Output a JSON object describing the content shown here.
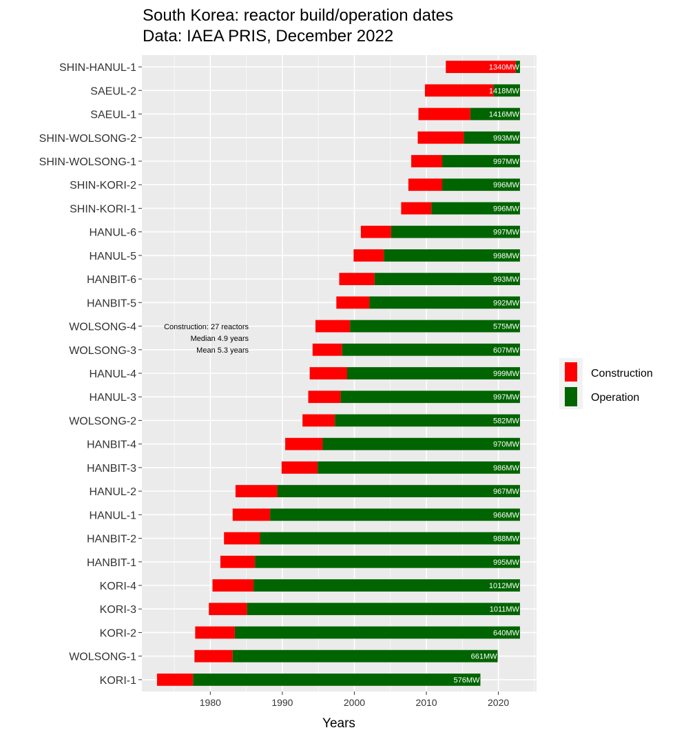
{
  "chart_data": {
    "type": "bar",
    "orientation": "horizontal-range",
    "title": "South Korea: reactor build/operation dates",
    "subtitle": "Data: IAEA PRIS, December 2022",
    "xlabel": "Years",
    "ylabel": "",
    "xlim": [
      1970.5,
      2025.3
    ],
    "xticks": [
      1980,
      1990,
      2000,
      2010,
      2020
    ],
    "grid": true,
    "legend_position": "right",
    "legend": [
      {
        "name": "Construction",
        "color": "#ff0000"
      },
      {
        "name": "Operation",
        "color": "#006400"
      }
    ],
    "annotation": [
      "Construction: 27 reactors",
      "Median 4.9 years",
      "Mean 5.3 years"
    ],
    "reactors": [
      {
        "name": "KORI-1",
        "construction_start": 1972.6,
        "operation_start": 1977.6,
        "end": 2017.5,
        "mw": "576MW"
      },
      {
        "name": "WOLSONG-1",
        "construction_start": 1977.8,
        "operation_start": 1983.1,
        "end": 2019.9,
        "mw": "661MW"
      },
      {
        "name": "KORI-2",
        "construction_start": 1977.9,
        "operation_start": 1983.4,
        "end": 2023.0,
        "mw": "640MW"
      },
      {
        "name": "KORI-3",
        "construction_start": 1979.8,
        "operation_start": 1985.1,
        "end": 2023.0,
        "mw": "1011MW"
      },
      {
        "name": "KORI-4",
        "construction_start": 1980.3,
        "operation_start": 1986.0,
        "end": 2023.0,
        "mw": "1012MW"
      },
      {
        "name": "HANBIT-1",
        "construction_start": 1981.4,
        "operation_start": 1986.2,
        "end": 2023.0,
        "mw": "995MW"
      },
      {
        "name": "HANBIT-2",
        "construction_start": 1981.9,
        "operation_start": 1986.9,
        "end": 2023.0,
        "mw": "988MW"
      },
      {
        "name": "HANUL-1",
        "construction_start": 1983.1,
        "operation_start": 1988.3,
        "end": 2023.0,
        "mw": "966MW"
      },
      {
        "name": "HANUL-2",
        "construction_start": 1983.5,
        "operation_start": 1989.3,
        "end": 2023.0,
        "mw": "967MW"
      },
      {
        "name": "HANBIT-3",
        "construction_start": 1989.9,
        "operation_start": 1994.9,
        "end": 2023.0,
        "mw": "986MW"
      },
      {
        "name": "HANBIT-4",
        "construction_start": 1990.4,
        "operation_start": 1995.6,
        "end": 2023.0,
        "mw": "970MW"
      },
      {
        "name": "WOLSONG-2",
        "construction_start": 1992.8,
        "operation_start": 1997.3,
        "end": 2023.0,
        "mw": "582MW"
      },
      {
        "name": "HANUL-3",
        "construction_start": 1993.6,
        "operation_start": 1998.1,
        "end": 2023.0,
        "mw": "997MW"
      },
      {
        "name": "HANUL-4",
        "construction_start": 1993.8,
        "operation_start": 1999.0,
        "end": 2023.0,
        "mw": "999MW"
      },
      {
        "name": "WOLSONG-3",
        "construction_start": 1994.2,
        "operation_start": 1998.3,
        "end": 2023.0,
        "mw": "607MW"
      },
      {
        "name": "WOLSONG-4",
        "construction_start": 1994.6,
        "operation_start": 1999.4,
        "end": 2023.0,
        "mw": "575MW"
      },
      {
        "name": "HANBIT-5",
        "construction_start": 1997.5,
        "operation_start": 2002.1,
        "end": 2023.0,
        "mw": "992MW"
      },
      {
        "name": "HANBIT-6",
        "construction_start": 1997.9,
        "operation_start": 2002.8,
        "end": 2023.0,
        "mw": "993MW"
      },
      {
        "name": "HANUL-5",
        "construction_start": 1999.9,
        "operation_start": 2004.1,
        "end": 2023.0,
        "mw": "998MW"
      },
      {
        "name": "HANUL-6",
        "construction_start": 2000.9,
        "operation_start": 2005.1,
        "end": 2023.0,
        "mw": "997MW"
      },
      {
        "name": "SHIN-KORI-1",
        "construction_start": 2006.5,
        "operation_start": 2010.7,
        "end": 2023.0,
        "mw": "996MW"
      },
      {
        "name": "SHIN-KORI-2",
        "construction_start": 2007.5,
        "operation_start": 2012.2,
        "end": 2023.0,
        "mw": "996MW"
      },
      {
        "name": "SHIN-WOLSONG-1",
        "construction_start": 2007.9,
        "operation_start": 2012.2,
        "end": 2023.0,
        "mw": "997MW"
      },
      {
        "name": "SHIN-WOLSONG-2",
        "construction_start": 2008.8,
        "operation_start": 2015.2,
        "end": 2023.0,
        "mw": "993MW"
      },
      {
        "name": "SAEUL-1",
        "construction_start": 2008.9,
        "operation_start": 2016.1,
        "end": 2023.0,
        "mw": "1416MW"
      },
      {
        "name": "SAEUL-2",
        "construction_start": 2009.8,
        "operation_start": 2019.3,
        "end": 2023.0,
        "mw": "1418MW"
      },
      {
        "name": "SHIN-HANUL-1",
        "construction_start": 2012.7,
        "operation_start": 2022.4,
        "end": 2023.0,
        "mw": "1340MW"
      }
    ]
  }
}
